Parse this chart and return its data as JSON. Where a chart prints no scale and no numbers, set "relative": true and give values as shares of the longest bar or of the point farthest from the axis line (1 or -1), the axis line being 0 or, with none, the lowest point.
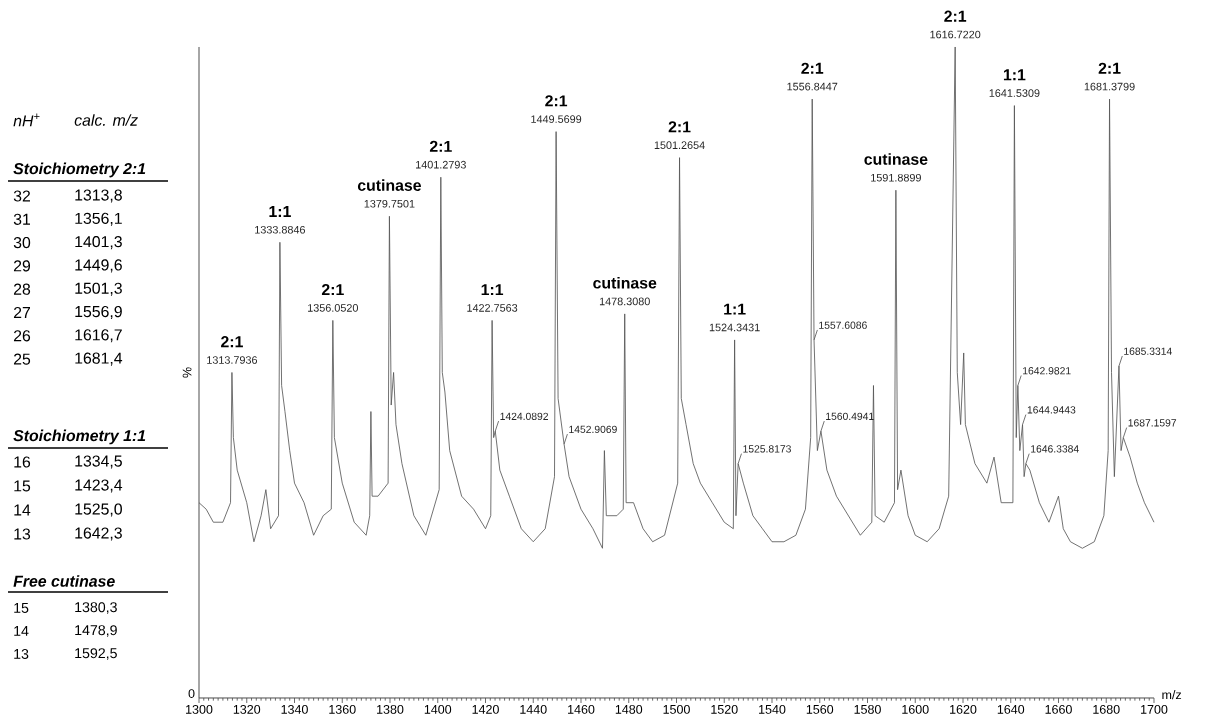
{
  "chart_data": {
    "type": "line",
    "relative": true,
    "color": "#555555",
    "xlabel": "m/z",
    "ylabel": "%",
    "xlim": [
      1300,
      1700
    ],
    "xticks": [
      1300,
      1320,
      1340,
      1360,
      1380,
      1400,
      1420,
      1440,
      1460,
      1480,
      1500,
      1520,
      1540,
      1560,
      1580,
      1600,
      1620,
      1640,
      1660,
      1680,
      1700
    ],
    "x": [
      1300,
      1303,
      1306,
      1310,
      1313.2,
      1313.79,
      1314.4,
      1316,
      1320,
      1323,
      1326,
      1328,
      1330,
      1333.3,
      1333.88,
      1334.6,
      1336,
      1338,
      1340,
      1344,
      1348,
      1352,
      1355.4,
      1356.05,
      1356.7,
      1360,
      1365,
      1370,
      1371.5,
      1372,
      1372.5,
      1375,
      1379.2,
      1379.75,
      1380.5,
      1381.5,
      1382.5,
      1385,
      1390,
      1395,
      1400.6,
      1401.28,
      1401.9,
      1403,
      1405,
      1410,
      1415,
      1420,
      1422.2,
      1422.76,
      1423.4,
      1424.09,
      1426,
      1430,
      1435,
      1440,
      1445,
      1448.9,
      1449.57,
      1450.4,
      1452.91,
      1455,
      1460,
      1465,
      1469,
      1469.8,
      1470.6,
      1475,
      1477.7,
      1478.31,
      1478.9,
      1482,
      1486,
      1490,
      1495,
      1500.5,
      1501.27,
      1502,
      1504,
      1507,
      1510,
      1515,
      1520,
      1523.8,
      1524.34,
      1524.9,
      1525.82,
      1528,
      1532,
      1536,
      1540,
      1545,
      1550,
      1554,
      1556.2,
      1556.84,
      1557.61,
      1559,
      1560.49,
      1563,
      1567,
      1572,
      1577,
      1581.8,
      1582.5,
      1583.2,
      1587,
      1591.3,
      1591.89,
      1592.6,
      1594,
      1597,
      1600,
      1605,
      1610,
      1614,
      1616.72,
      1617.6,
      1619,
      1620.3,
      1621,
      1625,
      1630,
      1633,
      1636,
      1640.9,
      1641.53,
      1642.3,
      1642.98,
      1643.8,
      1644.94,
      1645.6,
      1646.34,
      1648,
      1652,
      1656,
      1660,
      1662,
      1665,
      1670,
      1675,
      1679,
      1680.8,
      1681.38,
      1682.2,
      1683.4,
      1685.33,
      1686.2,
      1687.16,
      1690,
      1693,
      1696,
      1700
    ],
    "values": [
      0.3,
      0.29,
      0.27,
      0.27,
      0.3,
      0.5,
      0.4,
      0.35,
      0.3,
      0.24,
      0.28,
      0.32,
      0.26,
      0.28,
      0.7,
      0.48,
      0.44,
      0.38,
      0.33,
      0.3,
      0.25,
      0.28,
      0.29,
      0.58,
      0.4,
      0.33,
      0.27,
      0.25,
      0.28,
      0.44,
      0.31,
      0.31,
      0.33,
      0.74,
      0.45,
      0.5,
      0.42,
      0.36,
      0.28,
      0.25,
      0.32,
      0.8,
      0.5,
      0.47,
      0.38,
      0.31,
      0.29,
      0.26,
      0.28,
      0.58,
      0.4,
      0.41,
      0.35,
      0.31,
      0.26,
      0.24,
      0.26,
      0.34,
      0.87,
      0.46,
      0.39,
      0.34,
      0.29,
      0.26,
      0.23,
      0.38,
      0.28,
      0.28,
      0.29,
      0.59,
      0.3,
      0.3,
      0.26,
      0.24,
      0.25,
      0.33,
      0.83,
      0.46,
      0.42,
      0.36,
      0.33,
      0.3,
      0.27,
      0.26,
      0.55,
      0.28,
      0.36,
      0.33,
      0.28,
      0.26,
      0.24,
      0.24,
      0.25,
      0.29,
      0.4,
      0.92,
      0.55,
      0.38,
      0.41,
      0.35,
      0.31,
      0.28,
      0.25,
      0.27,
      0.48,
      0.28,
      0.27,
      0.3,
      0.78,
      0.32,
      0.35,
      0.28,
      0.25,
      0.24,
      0.26,
      0.31,
      1.0,
      0.5,
      0.42,
      0.53,
      0.42,
      0.36,
      0.33,
      0.37,
      0.3,
      0.3,
      0.91,
      0.4,
      0.48,
      0.38,
      0.42,
      0.34,
      0.36,
      0.35,
      0.3,
      0.27,
      0.31,
      0.26,
      0.24,
      0.23,
      0.24,
      0.28,
      0.38,
      0.92,
      0.5,
      0.34,
      0.51,
      0.38,
      0.4,
      0.37,
      0.33,
      0.3,
      0.27
    ],
    "annotations": [
      {
        "text": "1313.7936",
        "x": 1313.79,
        "y": 0.5
      },
      {
        "text": "2:1",
        "x": 1313.79,
        "y": 0.5
      },
      {
        "text": "1333.8846",
        "x": 1333.88,
        "y": 0.7
      },
      {
        "text": "1:1",
        "x": 1333.88,
        "y": 0.7
      },
      {
        "text": "1356.0520",
        "x": 1356.05,
        "y": 0.58
      },
      {
        "text": "2:1",
        "x": 1356.05,
        "y": 0.58
      },
      {
        "text": "1379.7501",
        "x": 1379.75,
        "y": 0.74
      },
      {
        "text": "cutinase",
        "x": 1379.75,
        "y": 0.74
      },
      {
        "text": "1401.2793",
        "x": 1401.28,
        "y": 0.8
      },
      {
        "text": "2:1",
        "x": 1401.28,
        "y": 0.8
      },
      {
        "text": "1422.7563",
        "x": 1422.76,
        "y": 0.58
      },
      {
        "text": "1:1",
        "x": 1422.76,
        "y": 0.58
      },
      {
        "text": "1424.0892",
        "x": 1424.09,
        "y": 0.41
      },
      {
        "text": "1449.5699",
        "x": 1449.57,
        "y": 0.87
      },
      {
        "text": "2:1",
        "x": 1449.57,
        "y": 0.87
      },
      {
        "text": "1452.9069",
        "x": 1452.91,
        "y": 0.39
      },
      {
        "text": "1478.3080",
        "x": 1478.31,
        "y": 0.59
      },
      {
        "text": "cutinase",
        "x": 1478.31,
        "y": 0.59
      },
      {
        "text": "1501.2654",
        "x": 1501.27,
        "y": 0.83
      },
      {
        "text": "2:1",
        "x": 1501.27,
        "y": 0.83
      },
      {
        "text": "1524.3431",
        "x": 1524.34,
        "y": 0.55
      },
      {
        "text": "1:1",
        "x": 1524.34,
        "y": 0.55
      },
      {
        "text": "1525.8173",
        "x": 1525.82,
        "y": 0.36
      },
      {
        "text": "1556.8447",
        "x": 1556.84,
        "y": 0.92
      },
      {
        "text": "2:1",
        "x": 1556.84,
        "y": 0.92
      },
      {
        "text": "1557.6086",
        "x": 1557.61,
        "y": 0.55
      },
      {
        "text": "1560.4941",
        "x": 1560.49,
        "y": 0.41
      },
      {
        "text": "1591.8899",
        "x": 1591.89,
        "y": 0.78
      },
      {
        "text": "cutinase",
        "x": 1591.89,
        "y": 0.78
      },
      {
        "text": "1616.7220",
        "x": 1616.72,
        "y": 1.0
      },
      {
        "text": "2:1",
        "x": 1616.72,
        "y": 1.0
      },
      {
        "text": "1641.5309",
        "x": 1641.53,
        "y": 0.91
      },
      {
        "text": "1:1",
        "x": 1641.53,
        "y": 0.91
      },
      {
        "text": "1642.9821",
        "x": 1642.98,
        "y": 0.48
      },
      {
        "text": "1644.9443",
        "x": 1644.94,
        "y": 0.42
      },
      {
        "text": "1646.3384",
        "x": 1646.34,
        "y": 0.36
      },
      {
        "text": "1681.3799",
        "x": 1681.38,
        "y": 0.92
      },
      {
        "text": "2:1",
        "x": 1681.38,
        "y": 0.92
      },
      {
        "text": "1685.3314",
        "x": 1685.33,
        "y": 0.51
      },
      {
        "text": "1687.1597",
        "x": 1687.16,
        "y": 0.4
      },
      "nH$^{+}$",
      "calc. m/z",
      "Stoichiometry 2:1",
      "32",
      "1313,8",
      "31",
      "1356,1",
      "30",
      "1401,3",
      "29",
      "1449,6",
      "28",
      "1501,3",
      "27",
      "1556,9",
      "26",
      "1616,7",
      "25",
      "1681,4",
      "Stoichiometry 1:1",
      "16",
      "1334,5",
      "15",
      "1423,4",
      "14",
      "1525,0",
      "13",
      "1642,3",
      "Free cutinase",
      "15",
      "1380,3",
      "14",
      "1478,9",
      "13",
      "1592,5",
      "0"
    ]
  }
}
